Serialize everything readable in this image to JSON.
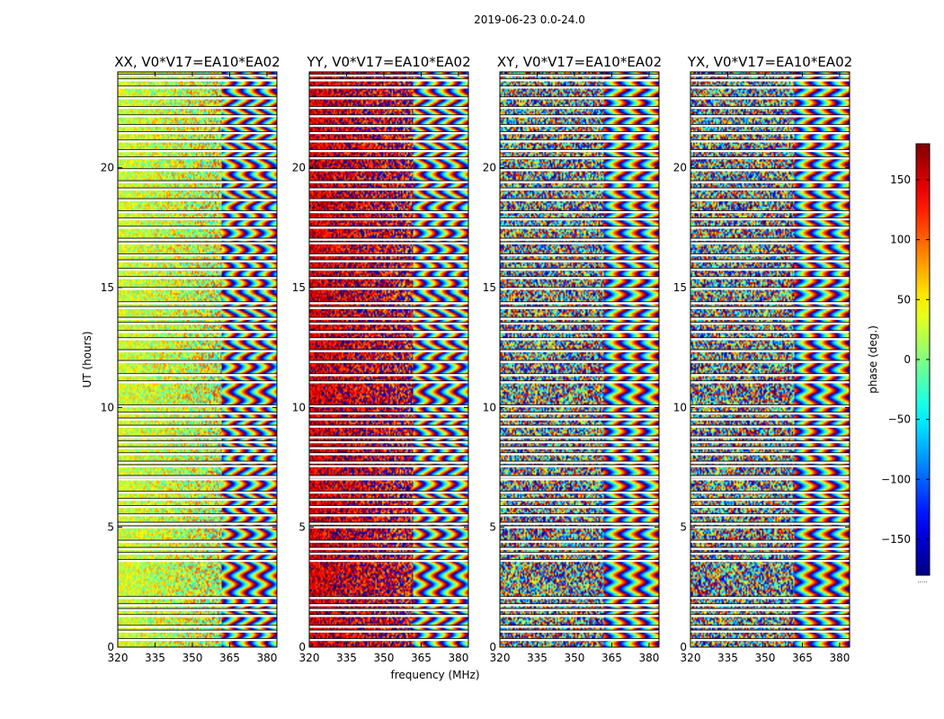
{
  "chart_data": {
    "type": "heatmap",
    "suptitle": "2019-06-23 0.0-24.0",
    "xlabel": "frequency (MHz)",
    "ylabel": "UT (hours)",
    "xlim": [
      320,
      384
    ],
    "ylim": [
      0,
      24
    ],
    "xticks": [
      320,
      335,
      350,
      365,
      380
    ],
    "yticks": [
      0,
      5,
      10,
      15,
      20
    ],
    "panels": [
      {
        "title": "XX, V0*V17=EA10*EA02",
        "pattern": "coherent",
        "base_phase": 30
      },
      {
        "title": "YY, V0*V17=EA10*EA02",
        "pattern": "coherent",
        "base_phase": 150
      },
      {
        "title": "XY, V0*V17=EA10*EA02",
        "pattern": "noise",
        "base_phase": 0
      },
      {
        "title": "YX, V0*V17=EA10*EA02",
        "pattern": "noise",
        "base_phase": 0
      }
    ],
    "colorbar": {
      "label": "phase (deg.)",
      "range": [
        -180,
        180
      ],
      "ticks": [
        -150,
        -100,
        -50,
        0,
        50,
        100,
        150
      ],
      "ticklabels": [
        "−150",
        "−100",
        "−50",
        "0",
        "50",
        "100",
        "150"
      ],
      "colormap": "jet",
      "footnote": "....."
    },
    "data_gaps_hours": [
      0.3,
      0.65,
      0.85,
      1.3,
      1.55,
      1.75,
      2.05,
      3.6,
      3.9,
      4.1,
      4.4,
      5.0,
      5.15,
      5.5,
      5.85,
      6.15,
      6.45,
      7.0,
      7.1,
      7.55,
      7.7,
      8.05,
      8.3,
      8.55,
      8.75,
      9.2,
      9.5,
      9.75,
      10.05,
      11.05,
      11.35,
      11.9,
      12.35,
      12.85,
      13.15,
      13.5,
      13.7,
      14.15,
      14.35,
      14.95,
      15.4,
      15.75,
      16.1,
      16.35,
      16.85,
      17.0,
      17.5,
      17.85,
      18.15,
      18.65,
      19.1,
      19.4,
      19.9,
      20.4,
      20.7,
      21.1,
      21.45,
      21.75,
      22.15,
      22.5,
      22.9,
      23.35,
      23.65,
      23.85
    ]
  }
}
